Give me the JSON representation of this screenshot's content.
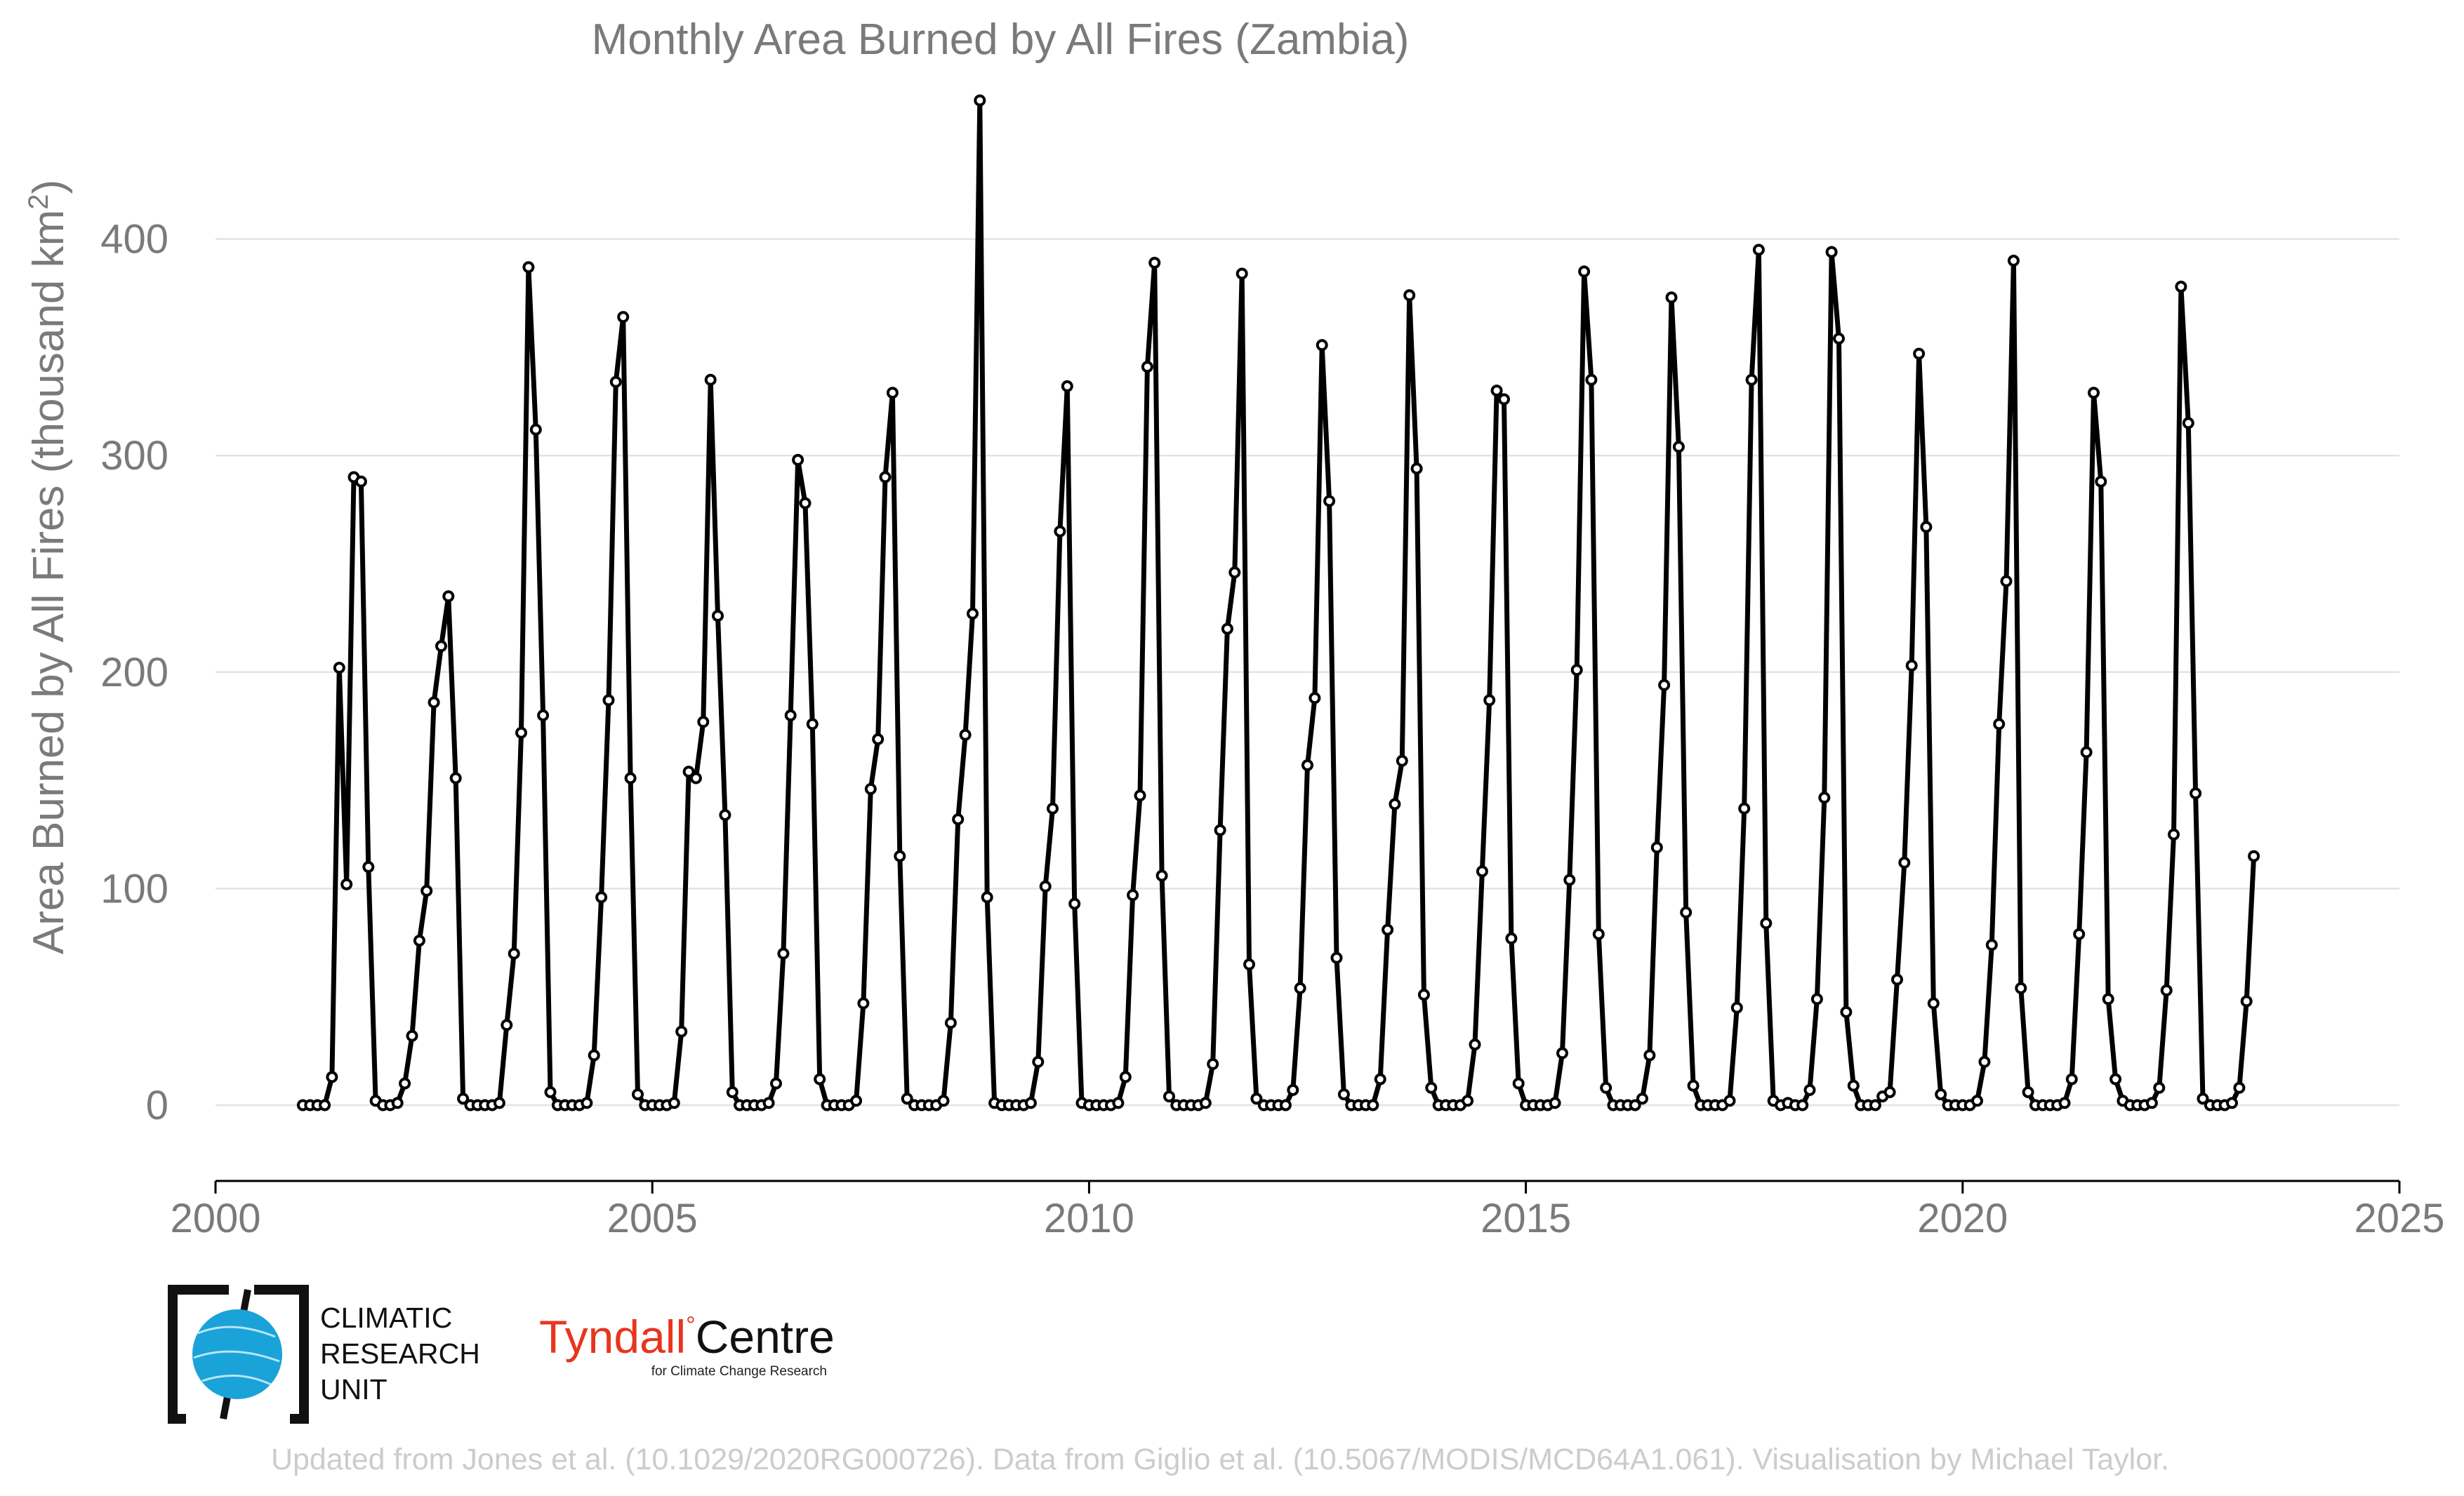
{
  "chart_data": {
    "type": "line",
    "title": "Monthly Area Burned by All Fires (Zambia)",
    "ylabel": "Area Burned by All Fires (thousand km",
    "ylabel_sup": "2",
    "ylabel_end": ")",
    "xlabel": "",
    "xlim": [
      2000,
      2025
    ],
    "ylim": [
      -35,
      465
    ],
    "x_ticks": [
      2000,
      2005,
      2010,
      2015,
      2020,
      2025
    ],
    "y_ticks": [
      0,
      100,
      200,
      300,
      400
    ],
    "grid": true,
    "series": [
      {
        "start": "2001-01",
        "values": [
          0,
          0,
          0,
          0,
          13,
          202,
          102,
          290,
          288,
          110,
          2,
          0,
          0,
          1,
          10,
          32,
          76,
          99,
          186,
          212,
          235,
          151,
          3,
          0,
          0,
          0,
          0,
          1,
          37,
          70,
          172,
          387,
          312,
          180,
          6,
          0,
          0,
          0,
          0,
          1,
          23,
          96,
          187,
          334,
          364,
          151,
          5,
          0,
          0,
          0,
          0,
          1,
          34,
          154,
          151,
          177,
          335,
          226,
          134,
          6,
          0,
          0,
          0,
          0,
          1,
          10,
          70,
          180,
          298,
          278,
          176,
          12,
          0,
          0,
          0,
          0,
          2,
          47,
          146,
          169,
          290,
          329,
          115,
          3,
          0,
          0,
          0,
          0,
          2,
          38,
          132,
          171,
          227,
          464,
          96,
          1,
          0,
          0,
          0,
          0,
          1,
          20,
          101,
          137,
          265,
          332,
          93,
          1,
          0,
          0,
          0,
          0,
          1,
          13,
          97,
          143,
          341,
          389,
          106,
          4,
          0,
          0,
          0,
          0,
          1,
          19,
          127,
          220,
          246,
          384,
          65,
          3,
          0,
          0,
          0,
          0,
          7,
          54,
          157,
          188,
          351,
          279,
          68,
          5,
          0,
          0,
          0,
          0,
          12,
          81,
          139,
          159,
          374,
          294,
          51,
          8,
          0,
          0,
          0,
          0,
          2,
          28,
          108,
          187,
          330,
          326,
          77,
          10,
          0,
          0,
          0,
          0,
          1,
          24,
          104,
          201,
          385,
          335,
          79,
          8,
          0,
          0,
          0,
          0,
          3,
          23,
          119,
          194,
          373,
          304,
          89,
          9,
          0,
          0,
          0,
          0,
          2,
          45,
          137,
          335,
          395,
          84,
          2,
          0,
          1,
          0,
          0,
          7,
          49,
          142,
          394,
          354,
          43,
          9,
          0,
          0,
          0,
          4,
          6,
          58,
          112,
          203,
          347,
          267,
          47,
          5,
          0,
          0,
          0,
          0,
          2,
          20,
          74,
          176,
          242,
          390,
          54,
          6,
          0,
          0,
          0,
          0,
          1,
          12,
          79,
          163,
          329,
          288,
          49,
          12,
          2,
          0,
          0,
          0,
          1,
          8,
          53,
          125,
          378,
          315,
          144,
          3,
          0,
          0,
          0,
          1,
          8,
          48,
          115
        ]
      }
    ]
  },
  "logos": {
    "cru": {
      "lines": [
        "CLIMATIC",
        "RESEARCH",
        "UNIT"
      ],
      "color": "#1aa3d9"
    },
    "tyndall": {
      "name": "Tyndall",
      "degree": "°",
      "suffix": "Centre",
      "tagline": "for Climate Change Research",
      "color": "#e8351e"
    }
  },
  "credit": "Updated from Jones et al. (10.1029/2020RG000726). Data from Giglio et al. (10.5067/MODIS/MCD64A1.061). Visualisation by Michael Taylor."
}
